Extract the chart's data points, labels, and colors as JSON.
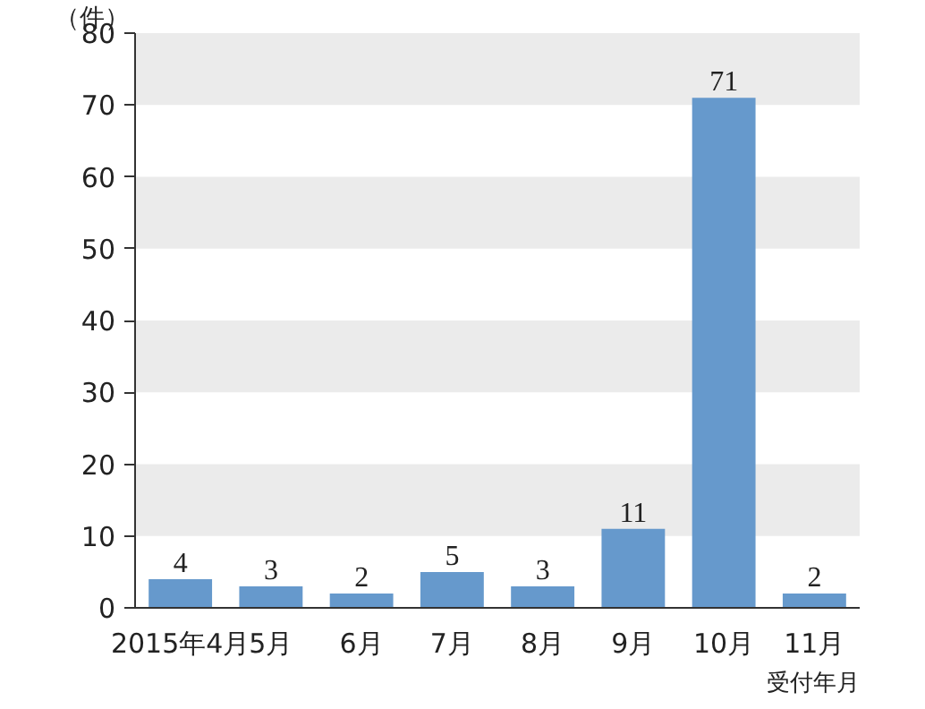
{
  "chart_data": {
    "type": "bar",
    "ylabel": "（件）",
    "xlabel": "受付年月",
    "categories": [
      "2015年4月",
      "5月",
      "6月",
      "7月",
      "8月",
      "9月",
      "10月",
      "11月"
    ],
    "values": [
      4,
      3,
      2,
      5,
      3,
      11,
      71,
      2
    ],
    "color": "#6699cc",
    "ylim": [
      0,
      80
    ],
    "yticks": [
      0,
      10,
      20,
      30,
      40,
      50,
      60,
      70,
      80
    ],
    "data_labels": true,
    "bands": [
      {
        "axis": "y",
        "from": 10,
        "to": 20,
        "color": "#ebebeb"
      },
      {
        "axis": "y",
        "from": 30,
        "to": 40,
        "color": "#ebebeb"
      },
      {
        "axis": "y",
        "from": 50,
        "to": 60,
        "color": "#ebebeb"
      },
      {
        "axis": "y",
        "from": 70,
        "to": 80,
        "color": "#ebebeb"
      }
    ]
  }
}
